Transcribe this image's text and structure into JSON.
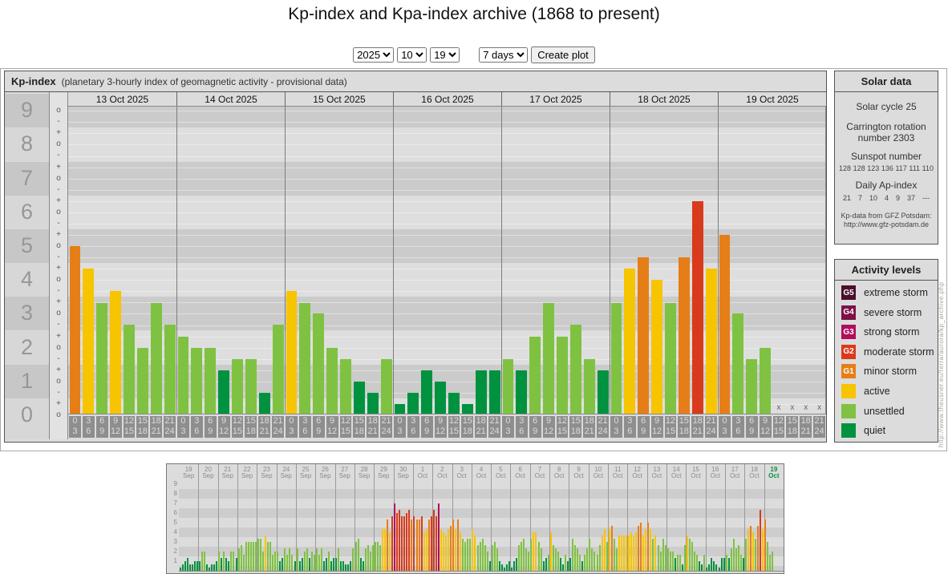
{
  "title": "Kp-index and Kpa-index archive (1868 to present)",
  "controls": {
    "year": "2025",
    "month": "10",
    "day": "19",
    "range": "7 days",
    "create_plot": "Create plot"
  },
  "kp_panel": {
    "title": "Kp-index",
    "subtitle": "(planetary 3-hourly index of geomagnetic activity - provisional data)"
  },
  "solar_panel": {
    "title": "Solar data",
    "solar_cycle": "Solar cycle 25",
    "carrington": "Carrington rotation number 2303",
    "sunspot_label": "Sunspot number",
    "sunspot_values": [
      "128",
      "128",
      "123",
      "136",
      "117",
      "111",
      "110"
    ],
    "ap_label": "Daily Ap-index",
    "ap_values": [
      "21",
      "7",
      "10",
      "4",
      "9",
      "37",
      "---"
    ],
    "credit_line1": "Kp-data from GFZ Potsdam:",
    "credit_line2": "http://www.gfz-potsdam.de"
  },
  "legend_panel": {
    "title": "Activity levels",
    "items": [
      {
        "code": "G5",
        "label": "extreme storm",
        "color_key": "extreme_storm"
      },
      {
        "code": "G4",
        "label": "severe storm",
        "color_key": "severe_storm"
      },
      {
        "code": "G3",
        "label": "strong storm",
        "color_key": "strong_storm"
      },
      {
        "code": "G2",
        "label": "moderate storm",
        "color_key": "moderate_storm"
      },
      {
        "code": "G1",
        "label": "minor storm",
        "color_key": "minor_storm"
      },
      {
        "code": "",
        "label": "active",
        "color_key": "active"
      },
      {
        "code": "",
        "label": "unsettled",
        "color_key": "unsettled"
      },
      {
        "code": "",
        "label": "quiet",
        "color_key": "quiet"
      }
    ]
  },
  "colors": {
    "quiet": "#00923f",
    "unsettled": "#7fc241",
    "active": "#f7c400",
    "minor_storm": "#e67e17",
    "moderate_storm": "#d93a1c",
    "strong_storm": "#b00d5c",
    "severe_storm": "#7d1148",
    "extreme_storm": "#4a0e2e"
  },
  "color_thresholds": [
    {
      "max": 1.5,
      "key": "quiet"
    },
    {
      "max": 3.5,
      "key": "unsettled"
    },
    {
      "max": 4.5,
      "key": "active"
    },
    {
      "max": 5.5,
      "key": "minor_storm"
    },
    {
      "max": 6.5,
      "key": "moderate_storm"
    },
    {
      "max": 7.5,
      "key": "strong_storm"
    },
    {
      "max": 8.5,
      "key": "severe_storm"
    },
    {
      "max": 10,
      "key": "extreme_storm"
    }
  ],
  "side_url": "http://www.theusner.eu/terra/aurora/kp_archive.php",
  "chart_data": [
    {
      "type": "bar",
      "title": "Kp-index 13-19 Oct 2025 (3-hourly)",
      "ylabel": "Kp",
      "ylim": [
        0,
        9.2
      ],
      "y_ticks": [
        9,
        8,
        7,
        6,
        5,
        4,
        3,
        2,
        1,
        0
      ],
      "interval_labels": [
        [
          "0",
          "3"
        ],
        [
          "3",
          "6"
        ],
        [
          "6",
          "9"
        ],
        [
          "9",
          "12"
        ],
        [
          "12",
          "15"
        ],
        [
          "15",
          "18"
        ],
        [
          "18",
          "21"
        ],
        [
          "21",
          "24"
        ]
      ],
      "missing_marker": "x",
      "days": [
        {
          "date": "13 Oct 2025",
          "kp": [
            5.0,
            4.33,
            3.33,
            3.67,
            2.67,
            2.0,
            3.33,
            2.67
          ]
        },
        {
          "date": "14 Oct 2025",
          "kp": [
            2.33,
            2.0,
            2.0,
            1.33,
            1.67,
            1.67,
            0.67,
            2.67
          ]
        },
        {
          "date": "15 Oct 2025",
          "kp": [
            3.67,
            3.33,
            3.0,
            2.0,
            1.67,
            1.0,
            0.67,
            1.67
          ]
        },
        {
          "date": "16 Oct 2025",
          "kp": [
            0.33,
            0.67,
            1.33,
            1.0,
            0.67,
            0.33,
            1.33,
            1.33
          ]
        },
        {
          "date": "17 Oct 2025",
          "kp": [
            1.67,
            1.33,
            2.33,
            3.33,
            2.33,
            2.67,
            1.67,
            1.33
          ]
        },
        {
          "date": "18 Oct 2025",
          "kp": [
            3.33,
            4.33,
            4.67,
            4.0,
            3.33,
            4.67,
            6.33,
            4.33
          ]
        },
        {
          "date": "19 Oct 2025",
          "kp": [
            5.33,
            3.0,
            1.67,
            2.0,
            null,
            null,
            null,
            null
          ]
        }
      ]
    },
    {
      "type": "bar",
      "title": "Kp overview 19 Sep - 19 Oct 2025",
      "ylim": [
        0,
        9.5
      ],
      "y_ticks": [
        9,
        8,
        7,
        6,
        5,
        4,
        3,
        2,
        1
      ],
      "highlight_day": "19 Oct",
      "days": [
        {
          "day": "19",
          "month": "Sep",
          "kp": [
            0.3,
            0.7,
            1.0,
            1.3,
            0.7,
            0.7,
            1.0,
            1.0
          ]
        },
        {
          "day": "20",
          "month": "Sep",
          "kp": [
            1.0,
            2.0,
            2.0,
            0.7,
            0.3,
            0.7,
            0.7,
            1.0
          ]
        },
        {
          "day": "21",
          "month": "Sep",
          "kp": [
            2.0,
            1.3,
            2.0,
            1.3,
            1.0,
            2.0,
            2.0,
            1.3
          ]
        },
        {
          "day": "22",
          "month": "Sep",
          "kp": [
            2.3,
            2.7,
            1.7,
            3.0,
            3.0,
            3.0,
            3.0,
            3.0
          ]
        },
        {
          "day": "23",
          "month": "Sep",
          "kp": [
            3.3,
            3.3,
            2.0,
            3.7,
            3.0,
            3.0,
            1.7,
            2.0
          ]
        },
        {
          "day": "24",
          "month": "Sep",
          "kp": [
            2.0,
            1.0,
            1.3,
            2.3,
            1.7,
            2.3,
            1.7,
            1.0
          ]
        },
        {
          "day": "25",
          "month": "Sep",
          "kp": [
            2.3,
            1.0,
            1.3,
            2.0,
            2.3,
            1.3,
            2.0,
            1.7
          ]
        },
        {
          "day": "26",
          "month": "Sep",
          "kp": [
            2.3,
            1.7,
            2.3,
            1.0,
            1.3,
            2.0,
            1.0,
            1.3
          ]
        },
        {
          "day": "27",
          "month": "Sep",
          "kp": [
            1.3,
            2.3,
            1.0,
            1.0,
            0.7,
            0.7,
            1.0,
            2.3
          ]
        },
        {
          "day": "28",
          "month": "Sep",
          "kp": [
            3.0,
            3.3,
            1.3,
            1.0,
            2.3,
            2.7,
            2.0,
            2.7
          ]
        },
        {
          "day": "29",
          "month": "Sep",
          "kp": [
            3.0,
            3.0,
            2.7,
            4.3,
            4.3,
            5.3,
            4.0,
            5.7
          ]
        },
        {
          "day": "30",
          "month": "Sep",
          "kp": [
            7.0,
            6.0,
            6.3,
            5.7,
            5.7,
            6.0,
            6.3,
            5.3
          ]
        },
        {
          "day": "1",
          "month": "Oct",
          "kp": [
            5.7,
            5.3,
            5.3,
            5.7,
            4.0,
            4.3,
            5.3,
            5.7
          ]
        },
        {
          "day": "2",
          "month": "Oct",
          "kp": [
            6.3,
            5.7,
            7.0,
            4.3,
            4.0,
            3.7,
            4.3,
            4.7
          ]
        },
        {
          "day": "3",
          "month": "Oct",
          "kp": [
            5.3,
            4.3,
            5.3,
            4.0,
            3.3,
            3.0,
            3.3,
            3.3
          ]
        },
        {
          "day": "4",
          "month": "Oct",
          "kp": [
            4.3,
            3.7,
            2.7,
            3.0,
            3.3,
            2.7,
            2.0,
            1.0
          ]
        },
        {
          "day": "5",
          "month": "Oct",
          "kp": [
            2.7,
            3.0,
            2.3,
            1.0,
            0.7,
            0.3,
            0.7,
            1.0
          ]
        },
        {
          "day": "6",
          "month": "Oct",
          "kp": [
            0.3,
            1.0,
            1.3,
            2.7,
            3.0,
            3.3,
            2.3,
            2.0
          ]
        },
        {
          "day": "7",
          "month": "Oct",
          "kp": [
            3.3,
            4.0,
            4.0,
            3.0,
            2.3,
            1.0,
            1.3,
            1.7
          ]
        },
        {
          "day": "8",
          "month": "Oct",
          "kp": [
            4.0,
            2.7,
            2.3,
            2.0,
            1.3,
            0.7,
            1.7,
            1.0
          ]
        },
        {
          "day": "9",
          "month": "Oct",
          "kp": [
            1.3,
            3.3,
            2.7,
            2.3,
            1.7,
            1.0,
            1.7,
            2.3
          ]
        },
        {
          "day": "10",
          "month": "Oct",
          "kp": [
            3.3,
            2.3,
            2.0,
            1.7,
            2.7,
            3.7,
            4.3,
            3.0
          ]
        },
        {
          "day": "11",
          "month": "Oct",
          "kp": [
            4.3,
            4.7,
            3.3,
            2.3,
            3.7,
            3.7,
            3.7,
            3.7
          ]
        },
        {
          "day": "12",
          "month": "Oct",
          "kp": [
            3.7,
            4.0,
            3.7,
            4.0,
            4.7,
            5.0,
            3.7,
            4.3
          ]
        },
        {
          "day": "13",
          "month": "Oct",
          "kp": [
            5.0,
            4.3,
            3.3,
            3.7,
            2.7,
            2.0,
            3.3,
            2.7
          ]
        },
        {
          "day": "14",
          "month": "Oct",
          "kp": [
            2.3,
            2.0,
            2.0,
            1.3,
            1.7,
            1.7,
            0.7,
            2.7
          ]
        },
        {
          "day": "15",
          "month": "Oct",
          "kp": [
            3.7,
            3.3,
            3.0,
            2.0,
            1.7,
            1.0,
            0.7,
            1.7
          ]
        },
        {
          "day": "16",
          "month": "Oct",
          "kp": [
            0.3,
            0.7,
            1.3,
            1.0,
            0.7,
            0.3,
            1.3,
            1.3
          ]
        },
        {
          "day": "17",
          "month": "Oct",
          "kp": [
            1.7,
            1.3,
            2.3,
            3.3,
            2.3,
            2.7,
            1.7,
            1.3
          ]
        },
        {
          "day": "18",
          "month": "Oct",
          "kp": [
            3.3,
            4.3,
            4.7,
            4.0,
            3.3,
            4.7,
            6.3,
            4.3
          ]
        },
        {
          "day": "19",
          "month": "Oct",
          "kp": [
            5.3,
            3.0,
            1.7,
            2.0,
            null,
            null,
            null,
            null
          ],
          "highlight": true
        }
      ]
    }
  ]
}
